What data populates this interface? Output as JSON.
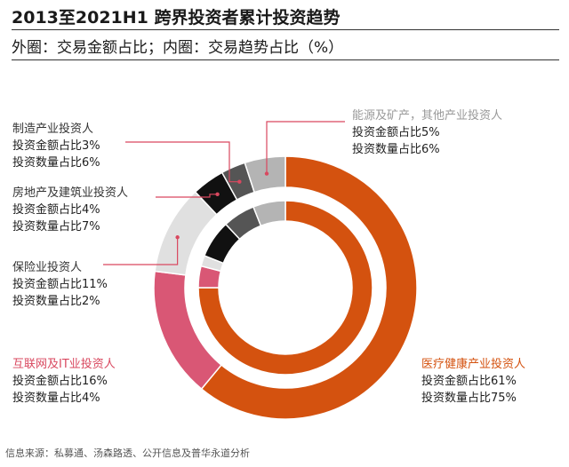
{
  "header": {
    "title": "2013至2021H1 跨界投资者累计投资趋势",
    "subtitle": "外圈：交易金额占比；内圈：交易趋势占比（%）"
  },
  "source": "信息来源：私募通、汤森路透、公开信息及普华永道分析",
  "chart_data": {
    "type": "donut",
    "title": "2013至2021H1 跨界投资者累计投资趋势",
    "rings": [
      {
        "name": "外圈：交易金额占比",
        "series": "投资金额占比"
      },
      {
        "name": "内圈：交易趋势占比",
        "series": "投资数量占比"
      }
    ],
    "categories": [
      "医疗健康产业投资人",
      "互联网及IT业投资人",
      "保险业投资人",
      "房地产及建筑业投资人",
      "制造产业投资人",
      "能源及矿产，其他产业投资人"
    ],
    "outer_values": [
      61,
      16,
      11,
      4,
      3,
      5
    ],
    "inner_values": [
      75,
      4,
      2,
      7,
      6,
      6
    ],
    "unit": "%",
    "colors": [
      "#d4520f",
      "#d95775",
      "#e0e0e0",
      "#111111",
      "#555555",
      "#b4b4b4"
    ]
  },
  "labels": [
    {
      "name": "制造产业投资人",
      "line1": "投资金额占比3%",
      "line2": "投资数量占比6%",
      "color": "#333333"
    },
    {
      "name": "房地产及建筑业投资人",
      "line1": "投资金额占比4%",
      "line2": "投资数量占比7%",
      "color": "#333333"
    },
    {
      "name": "保险业投资人",
      "line1": "投资金额占比11%",
      "line2": "投资数量占比2%",
      "color": "#333333"
    },
    {
      "name": "互联网及IT业投资人",
      "line1": "投资金额占比16%",
      "line2": "投资数量占比4%",
      "color": "#d9485f"
    },
    {
      "name": "能源及矿产，其他产业投资人",
      "line1": "投资金额占比5%",
      "line2": "投资数量占比6%",
      "color": "#999999"
    },
    {
      "name": "医疗健康产业投资人",
      "line1": "投资金额占比61%",
      "line2": "投资数量占比75%",
      "color": "#d4520f"
    }
  ]
}
